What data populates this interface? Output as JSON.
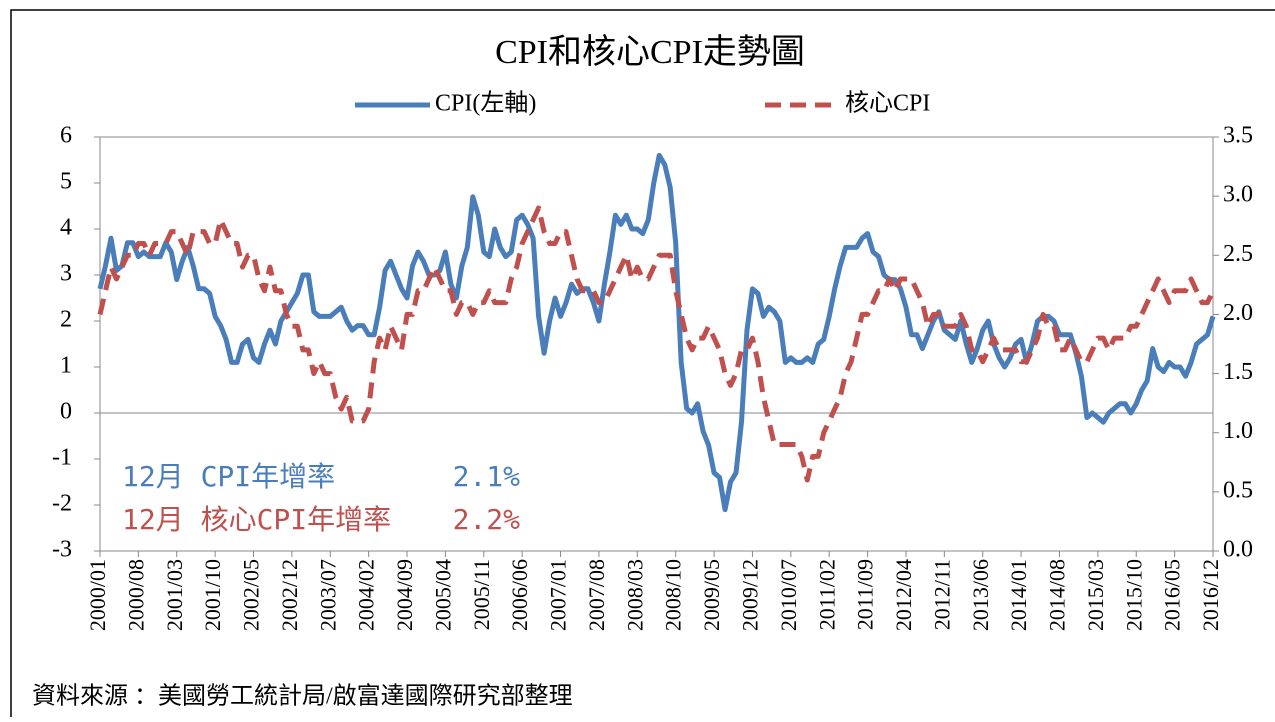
{
  "chart_data": {
    "type": "line",
    "title": "CPI和核心CPI走勢圖",
    "categories": [
      "2000/01",
      null,
      null,
      null,
      null,
      null,
      null,
      "2000/08",
      null,
      null,
      null,
      null,
      null,
      null,
      "2001/03",
      null,
      null,
      null,
      null,
      null,
      null,
      "2001/10",
      null,
      null,
      null,
      null,
      null,
      null,
      "2002/05",
      null,
      null,
      null,
      null,
      null,
      null,
      "2002/12",
      null,
      null,
      null,
      null,
      null,
      null,
      "2003/07",
      null,
      null,
      null,
      null,
      null,
      null,
      "2004/02",
      null,
      null,
      null,
      null,
      null,
      null,
      "2004/09",
      null,
      null,
      null,
      null,
      null,
      null,
      "2005/04",
      null,
      null,
      null,
      null,
      null,
      null,
      "2005/11",
      null,
      null,
      null,
      null,
      null,
      null,
      "2006/06",
      null,
      null,
      null,
      null,
      null,
      null,
      "2007/01",
      null,
      null,
      null,
      null,
      null,
      null,
      "2007/08",
      null,
      null,
      null,
      null,
      null,
      null,
      "2008/03",
      null,
      null,
      null,
      null,
      null,
      null,
      "2008/10",
      null,
      null,
      null,
      null,
      null,
      null,
      "2009/05",
      null,
      null,
      null,
      null,
      null,
      null,
      "2009/12",
      null,
      null,
      null,
      null,
      null,
      null,
      "2010/07",
      null,
      null,
      null,
      null,
      null,
      null,
      "2011/02",
      null,
      null,
      null,
      null,
      null,
      null,
      "2011/09",
      null,
      null,
      null,
      null,
      null,
      null,
      "2012/04",
      null,
      null,
      null,
      null,
      null,
      null,
      "2012/11",
      null,
      null,
      null,
      null,
      null,
      null,
      "2013/06",
      null,
      null,
      null,
      null,
      null,
      null,
      "2014/01",
      null,
      null,
      null,
      null,
      null,
      null,
      "2014/08",
      null,
      null,
      null,
      null,
      null,
      null,
      "2015/03",
      null,
      null,
      null,
      null,
      null,
      null,
      "2015/10",
      null,
      null,
      null,
      null,
      null,
      null,
      "2016/05",
      null,
      null,
      null,
      null,
      null,
      null,
      "2016/12"
    ],
    "series": [
      {
        "name": "CPI(左軸)",
        "color": "#4a7ebb",
        "dash": false,
        "values": [
          2.7,
          3.2,
          3.8,
          3.1,
          3.2,
          3.7,
          3.7,
          3.4,
          3.5,
          3.4,
          3.4,
          3.4,
          3.7,
          3.5,
          2.9,
          3.3,
          3.6,
          3.2,
          2.7,
          2.7,
          2.6,
          2.1,
          1.9,
          1.6,
          1.1,
          1.1,
          1.5,
          1.6,
          1.2,
          1.1,
          1.5,
          1.8,
          1.5,
          2.0,
          2.2,
          2.4,
          2.6,
          3.0,
          3.0,
          2.2,
          2.1,
          2.1,
          2.1,
          2.2,
          2.3,
          2.0,
          1.8,
          1.9,
          1.9,
          1.7,
          1.7,
          2.3,
          3.1,
          3.3,
          3.0,
          2.7,
          2.5,
          3.2,
          3.5,
          3.3,
          3.0,
          3.0,
          3.1,
          3.5,
          2.8,
          2.5,
          3.2,
          3.6,
          4.7,
          4.3,
          3.5,
          3.4,
          4.0,
          3.6,
          3.4,
          3.5,
          4.2,
          4.3,
          4.1,
          3.8,
          2.1,
          1.3,
          2.0,
          2.5,
          2.1,
          2.4,
          2.8,
          2.6,
          2.7,
          2.7,
          2.4,
          2.0,
          2.8,
          3.5,
          4.3,
          4.1,
          4.3,
          4.0,
          4.0,
          3.9,
          4.2,
          5.0,
          5.6,
          5.4,
          4.9,
          3.7,
          1.1,
          0.1,
          0.0,
          0.2,
          -0.4,
          -0.7,
          -1.3,
          -1.4,
          -2.1,
          -1.5,
          -1.3,
          -0.2,
          1.8,
          2.7,
          2.6,
          2.1,
          2.3,
          2.2,
          2.0,
          1.1,
          1.2,
          1.1,
          1.1,
          1.2,
          1.1,
          1.5,
          1.6,
          2.1,
          2.7,
          3.2,
          3.6,
          3.6,
          3.6,
          3.8,
          3.9,
          3.5,
          3.4,
          3.0,
          2.9,
          2.9,
          2.7,
          2.3,
          1.7,
          1.7,
          1.4,
          1.7,
          2.0,
          2.2,
          1.8,
          1.7,
          1.6,
          2.0,
          1.5,
          1.1,
          1.4,
          1.8,
          2.0,
          1.5,
          1.2,
          1.0,
          1.2,
          1.5,
          1.6,
          1.1,
          1.5,
          2.0,
          2.1,
          2.1,
          2.0,
          1.7,
          1.7,
          1.7,
          1.3,
          0.8,
          -0.1,
          0.0,
          -0.1,
          -0.2,
          0.0,
          0.1,
          0.2,
          0.2,
          0.0,
          0.2,
          0.5,
          0.7,
          1.4,
          1.0,
          0.9,
          1.1,
          1.0,
          1.0,
          0.8,
          1.1,
          1.5,
          1.6,
          1.7,
          2.1
        ]
      },
      {
        "name": "核心CPI",
        "color": "#c0504d",
        "dash": true,
        "axis": "y2",
        "values": [
          2.0,
          2.2,
          2.4,
          2.3,
          2.4,
          2.5,
          2.5,
          2.6,
          2.6,
          2.5,
          2.6,
          2.6,
          2.6,
          2.7,
          2.7,
          2.6,
          2.5,
          2.7,
          2.7,
          2.7,
          2.6,
          2.6,
          2.8,
          2.7,
          2.6,
          2.6,
          2.4,
          2.5,
          2.5,
          2.3,
          2.2,
          2.4,
          2.2,
          2.2,
          2.0,
          1.9,
          1.9,
          1.7,
          1.7,
          1.5,
          1.6,
          1.5,
          1.5,
          1.3,
          1.2,
          1.3,
          1.1,
          1.1,
          1.1,
          1.2,
          1.6,
          1.8,
          1.7,
          1.9,
          1.8,
          1.7,
          2.0,
          2.0,
          2.2,
          2.2,
          2.3,
          2.4,
          2.3,
          2.2,
          2.2,
          2.0,
          2.1,
          2.1,
          2.0,
          2.1,
          2.1,
          2.2,
          2.1,
          2.1,
          2.1,
          2.3,
          2.4,
          2.6,
          2.7,
          2.8,
          2.9,
          2.7,
          2.6,
          2.6,
          2.7,
          2.7,
          2.5,
          2.3,
          2.2,
          2.2,
          2.2,
          2.1,
          2.1,
          2.2,
          2.3,
          2.4,
          2.5,
          2.3,
          2.4,
          2.3,
          2.3,
          2.4,
          2.5,
          2.5,
          2.5,
          2.2,
          2.0,
          1.8,
          1.7,
          1.8,
          1.8,
          1.9,
          1.8,
          1.7,
          1.5,
          1.4,
          1.5,
          1.7,
          1.7,
          1.8,
          1.6,
          1.3,
          1.1,
          0.9,
          0.9,
          0.9,
          0.9,
          0.9,
          0.8,
          0.6,
          0.8,
          0.8,
          1.0,
          1.1,
          1.2,
          1.3,
          1.5,
          1.6,
          1.8,
          2.0,
          2.0,
          2.1,
          2.2,
          2.2,
          2.3,
          2.2,
          2.3,
          2.3,
          2.3,
          2.2,
          2.1,
          1.9,
          2.0,
          2.0,
          1.9,
          1.9,
          1.9,
          2.0,
          1.9,
          1.7,
          1.7,
          1.6,
          1.7,
          1.8,
          1.7,
          1.7,
          1.7,
          1.7,
          1.6,
          1.6,
          1.7,
          1.8,
          2.0,
          1.9,
          1.9,
          1.7,
          1.7,
          1.8,
          1.7,
          1.6,
          1.6,
          1.7,
          1.8,
          1.8,
          1.7,
          1.8,
          1.8,
          1.8,
          1.9,
          1.9,
          2.0,
          2.1,
          2.2,
          2.3,
          2.2,
          2.1,
          2.2,
          2.2,
          2.2,
          2.3,
          2.2,
          2.1,
          2.1,
          2.2
        ]
      }
    ],
    "ylim": [
      -3,
      6
    ],
    "yticks": [
      -3,
      -2,
      -1,
      0,
      1,
      2,
      3,
      4,
      5,
      6
    ],
    "y2lim": [
      0,
      3.5
    ],
    "y2ticks": [
      {
        "value": 0,
        "label": "0.0"
      },
      {
        "value": 0.5,
        "label": "0.5"
      },
      {
        "value": 1,
        "label": "1.0"
      },
      {
        "value": 1.5,
        "label": "1.5"
      },
      {
        "value": 2,
        "label": "2.0"
      },
      {
        "value": 2.5,
        "label": "2.5"
      },
      {
        "value": 3,
        "label": "3.0"
      },
      {
        "value": 3.5,
        "label": "3.5"
      }
    ],
    "legend": "top",
    "annotations": [
      {
        "text": "12月 CPI年增率",
        "value_text": "2.1%",
        "color": "#4a7ebb"
      },
      {
        "text": "12月 核心CPI年增率",
        "value_text": "2.2%",
        "color": "#c0504d"
      }
    ],
    "source": "資料來源 ：美國勞工統計局/啟富達國際研究部整理"
  }
}
